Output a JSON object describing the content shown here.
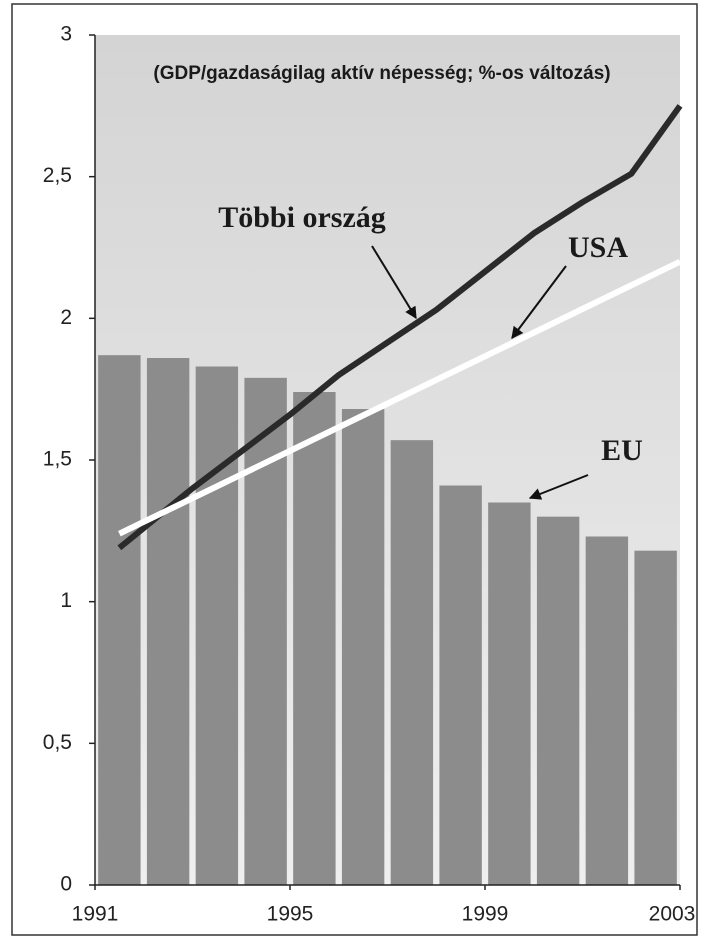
{
  "chart_data": {
    "type": "bar",
    "subtitle": "(GDP/gazdaságilag aktív népesség; %-os változás)",
    "xlim": [
      1991,
      2003
    ],
    "xticks": [
      1991,
      1995,
      1999,
      2003
    ],
    "ylim": [
      0,
      3
    ],
    "yticks": [
      0,
      {
        "value": 0.5,
        "label": "0,5"
      },
      1,
      {
        "value": 1.5,
        "label": "1,5"
      },
      2,
      {
        "value": 2.5,
        "label": "2,5"
      },
      3
    ],
    "series": [
      {
        "name": "EU",
        "type": "bar",
        "color": "#8c8c8c",
        "x": [
          1991.5,
          1992.5,
          1993.5,
          1994.5,
          1995.5,
          1996.5,
          1997.5,
          1998.5,
          1999.5,
          2000.5,
          2001.5,
          2002.5
        ],
        "values": [
          1.87,
          1.86,
          1.83,
          1.79,
          1.74,
          1.68,
          1.57,
          1.41,
          1.35,
          1.3,
          1.23,
          1.18
        ]
      },
      {
        "name": "Többi ország",
        "type": "line",
        "color": "#2a2a2a",
        "x": [
          1991.5,
          1993,
          1995,
          1996,
          1998,
          2000,
          2001,
          2002,
          2003
        ],
        "values": [
          1.19,
          1.4,
          1.66,
          1.8,
          2.03,
          2.3,
          2.41,
          2.51,
          2.75
        ]
      },
      {
        "name": "USA",
        "type": "line",
        "color": "#ffffff",
        "x": [
          1991.5,
          2003
        ],
        "values": [
          1.24,
          2.2
        ]
      }
    ]
  }
}
